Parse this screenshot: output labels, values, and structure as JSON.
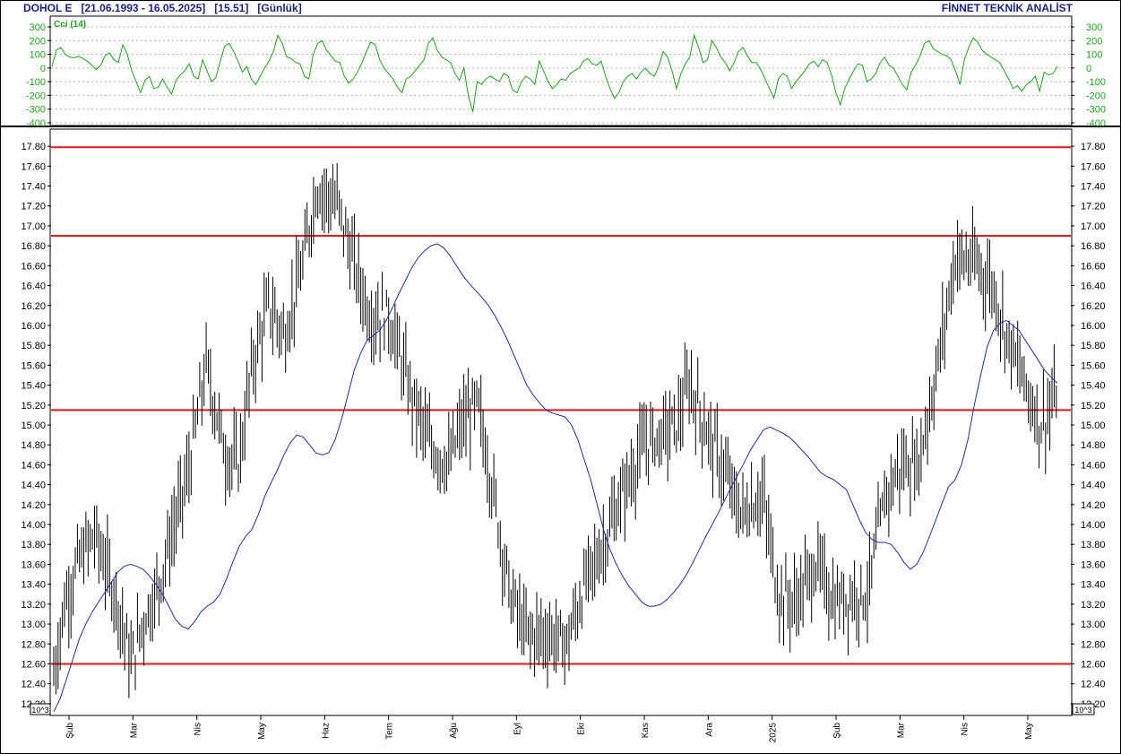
{
  "header": {
    "symbol": "DOHOL E",
    "date_range": "[21.06.1993 - 16.05.2025]",
    "last_price": "[15.51]",
    "period": "[Günlük]",
    "provider": "FİNNET TEKNİK ANALİST"
  },
  "colors": {
    "price_bars": "#000000",
    "moving_average": "#1f2f9f",
    "cci_line": "#20a020",
    "support_resistance": "#e01818",
    "grid": "#b0b0b0",
    "header_text": "#1a237e"
  },
  "chart_data": [
    {
      "type": "line",
      "title": "Cci (14)",
      "y_ticks": [
        "300",
        "200",
        "100",
        "0",
        "-100",
        "-200",
        "-300",
        "-400"
      ],
      "ylim": [
        -400,
        300
      ],
      "grid": "horizontal dotted",
      "series": [
        {
          "name": "Cci (14)",
          "values": [
            10,
            130,
            150,
            100,
            80,
            75,
            85,
            70,
            50,
            20,
            -10,
            20,
            90,
            110,
            60,
            40,
            170,
            100,
            -20,
            -100,
            -180,
            -90,
            -60,
            -150,
            -140,
            -80,
            -140,
            -190,
            -90,
            -50,
            -20,
            30,
            -60,
            -80,
            60,
            -20,
            -100,
            -70,
            50,
            160,
            180,
            120,
            50,
            -30,
            10,
            -80,
            -120,
            -60,
            0,
            50,
            120,
            240,
            180,
            80,
            70,
            40,
            30,
            -60,
            -80,
            100,
            180,
            200,
            130,
            90,
            50,
            40,
            -60,
            -110,
            -80,
            -30,
            40,
            120,
            190,
            170,
            60,
            0,
            -40,
            -80,
            -140,
            -180,
            -80,
            -60,
            -20,
            20,
            60,
            180,
            220,
            130,
            80,
            60,
            40,
            -40,
            -90,
            0,
            -200,
            -320,
            -100,
            -120,
            -80,
            -60,
            -80,
            -100,
            -40,
            -60,
            -160,
            -180,
            -100,
            -60,
            -80,
            -120,
            50,
            -20,
            -100,
            -150,
            -120,
            -80,
            -90,
            -40,
            -20,
            0,
            50,
            70,
            30,
            20,
            50,
            -60,
            -150,
            -220,
            -180,
            -100,
            -60,
            -40,
            -80,
            -30,
            0,
            -40,
            -60,
            10,
            120,
            80,
            -20,
            -150,
            -40,
            30,
            80,
            240,
            150,
            40,
            60,
            200,
            150,
            80,
            40,
            -20,
            40,
            120,
            150,
            90,
            40,
            40,
            -10,
            -80,
            -150,
            -220,
            -80,
            -40,
            -60,
            -150,
            -100,
            -60,
            -20,
            30,
            50,
            10,
            60,
            40,
            -50,
            -180,
            -270,
            -150,
            -80,
            -20,
            30,
            20,
            -100,
            -80,
            -40,
            40,
            80,
            20,
            0,
            -60,
            -120,
            -160,
            -30,
            20,
            90,
            180,
            200,
            140,
            120,
            100,
            90,
            60,
            -20,
            -120,
            60,
            150,
            220,
            190,
            130,
            100,
            80,
            60,
            40,
            -20,
            -80,
            -150,
            -130,
            -170,
            -120,
            -100,
            -60,
            -170,
            -30,
            -50,
            -40,
            10
          ]
        }
      ]
    },
    {
      "type": "line",
      "title": "",
      "unit_box": "10^3",
      "ylim": [
        12.1,
        17.9
      ],
      "y_ticks": [
        "17.80",
        "17.60",
        "17.40",
        "17.20",
        "17.00",
        "16.80",
        "16.60",
        "16.40",
        "16.20",
        "16.00",
        "15.80",
        "15.60",
        "15.40",
        "15.20",
        "15.00",
        "14.80",
        "14.60",
        "14.40",
        "14.20",
        "14.00",
        "13.80",
        "13.60",
        "13.40",
        "13.20",
        "13.00",
        "12.80",
        "12.60",
        "12.40",
        "12.20"
      ],
      "x_month_labels": [
        "Şub",
        "Mar",
        "Nis",
        "May",
        "Haz",
        "Tem",
        "Ağu",
        "Eyl",
        "Eki",
        "Kas",
        "Ara",
        "2025",
        "Şub",
        "Mar",
        "Nis",
        "May"
      ],
      "horizontal_levels": [
        17.79,
        16.9,
        15.15,
        12.6
      ],
      "grid": "off",
      "series": [
        {
          "name": "price range (OHLC bars)",
          "points_per_day": "high, low",
          "anchors": [
            [
              0,
              12.5
            ],
            [
              10,
              13.2
            ],
            [
              22,
              13.6
            ],
            [
              38,
              13.9
            ],
            [
              48,
              13.6
            ],
            [
              60,
              13.2
            ],
            [
              72,
              12.6
            ],
            [
              80,
              12.9
            ],
            [
              86,
              13.1
            ],
            [
              95,
              13.3
            ],
            [
              110,
              13.9
            ],
            [
              125,
              14.5
            ],
            [
              142,
              15.6
            ],
            [
              160,
              14.7
            ],
            [
              172,
              14.6
            ],
            [
              185,
              15.6
            ],
            [
              200,
              16.2
            ],
            [
              215,
              15.9
            ],
            [
              232,
              16.6
            ],
            [
              245,
              17.4
            ],
            [
              265,
              17.2
            ],
            [
              280,
              16.6
            ],
            [
              295,
              16.1
            ],
            [
              312,
              16.1
            ],
            [
              330,
              15.4
            ],
            [
              350,
              14.8
            ],
            [
              368,
              14.6
            ],
            [
              380,
              15.0
            ],
            [
              395,
              15.2
            ],
            [
              410,
              14.3
            ],
            [
              425,
              13.3
            ],
            [
              440,
              12.9
            ],
            [
              460,
              12.9
            ],
            [
              478,
              12.8
            ],
            [
              495,
              13.4
            ],
            [
              512,
              13.8
            ],
            [
              530,
              14.3
            ],
            [
              550,
              14.8
            ],
            [
              565,
              14.9
            ],
            [
              580,
              15.0
            ],
            [
              592,
              15.4
            ],
            [
              610,
              14.9
            ],
            [
              622,
              14.6
            ],
            [
              640,
              14.1
            ],
            [
              660,
              14.3
            ],
            [
              675,
              13.3
            ],
            [
              690,
              13.2
            ],
            [
              710,
              13.6
            ],
            [
              728,
              13.2
            ],
            [
              745,
              13.3
            ],
            [
              758,
              13.3
            ],
            [
              775,
              14.3
            ],
            [
              790,
              14.6
            ],
            [
              805,
              14.6
            ],
            [
              822,
              15.5
            ],
            [
              840,
              16.7
            ],
            [
              860,
              16.6
            ],
            [
              875,
              16.4
            ],
            [
              888,
              15.9
            ],
            [
              905,
              15.4
            ],
            [
              920,
              15.0
            ],
            [
              935,
              15.3
            ]
          ],
          "note": "daily high/low estimated from axis"
        },
        {
          "name": "moving average",
          "values": [
            12.12,
            12.25,
            12.45,
            12.65,
            12.85,
            13.0,
            13.12,
            13.22,
            13.32,
            13.42,
            13.52,
            13.58,
            13.6,
            13.58,
            13.55,
            13.48,
            13.4,
            13.3,
            13.18,
            13.05,
            12.98,
            12.95,
            13.02,
            13.12,
            13.18,
            13.22,
            13.3,
            13.45,
            13.62,
            13.78,
            13.88,
            13.95,
            14.1,
            14.28,
            14.42,
            14.55,
            14.7,
            14.82,
            14.9,
            14.88,
            14.8,
            14.72,
            14.7,
            14.72,
            14.85,
            15.05,
            15.3,
            15.55,
            15.72,
            15.85,
            15.9,
            15.95,
            16.05,
            16.18,
            16.32,
            16.45,
            16.58,
            16.68,
            16.75,
            16.8,
            16.82,
            16.78,
            16.7,
            16.6,
            16.5,
            16.42,
            16.35,
            16.28,
            16.2,
            16.1,
            15.98,
            15.85,
            15.7,
            15.55,
            15.4,
            15.3,
            15.22,
            15.15,
            15.12,
            15.1,
            15.08,
            15.0,
            14.85,
            14.65,
            14.45,
            14.2,
            13.95,
            13.75,
            13.6,
            13.48,
            13.38,
            13.3,
            13.22,
            13.18,
            13.18,
            13.2,
            13.25,
            13.32,
            13.4,
            13.5,
            13.62,
            13.75,
            13.88,
            14.0,
            14.12,
            14.25,
            14.38,
            14.5,
            14.62,
            14.75,
            14.85,
            14.95,
            14.98,
            14.95,
            14.92,
            14.88,
            14.82,
            14.75,
            14.68,
            14.6,
            14.52,
            14.48,
            14.45,
            14.4,
            14.35,
            14.2,
            14.05,
            13.92,
            13.85,
            13.82,
            13.82,
            13.8,
            13.72,
            13.62,
            13.55,
            13.6,
            13.72,
            13.88,
            14.05,
            14.22,
            14.38,
            14.45,
            14.6,
            14.85,
            15.2,
            15.5,
            15.78,
            15.95,
            16.02,
            16.05,
            16.0,
            15.95,
            15.85,
            15.75,
            15.65,
            15.55,
            15.48,
            15.42
          ]
        }
      ]
    }
  ]
}
